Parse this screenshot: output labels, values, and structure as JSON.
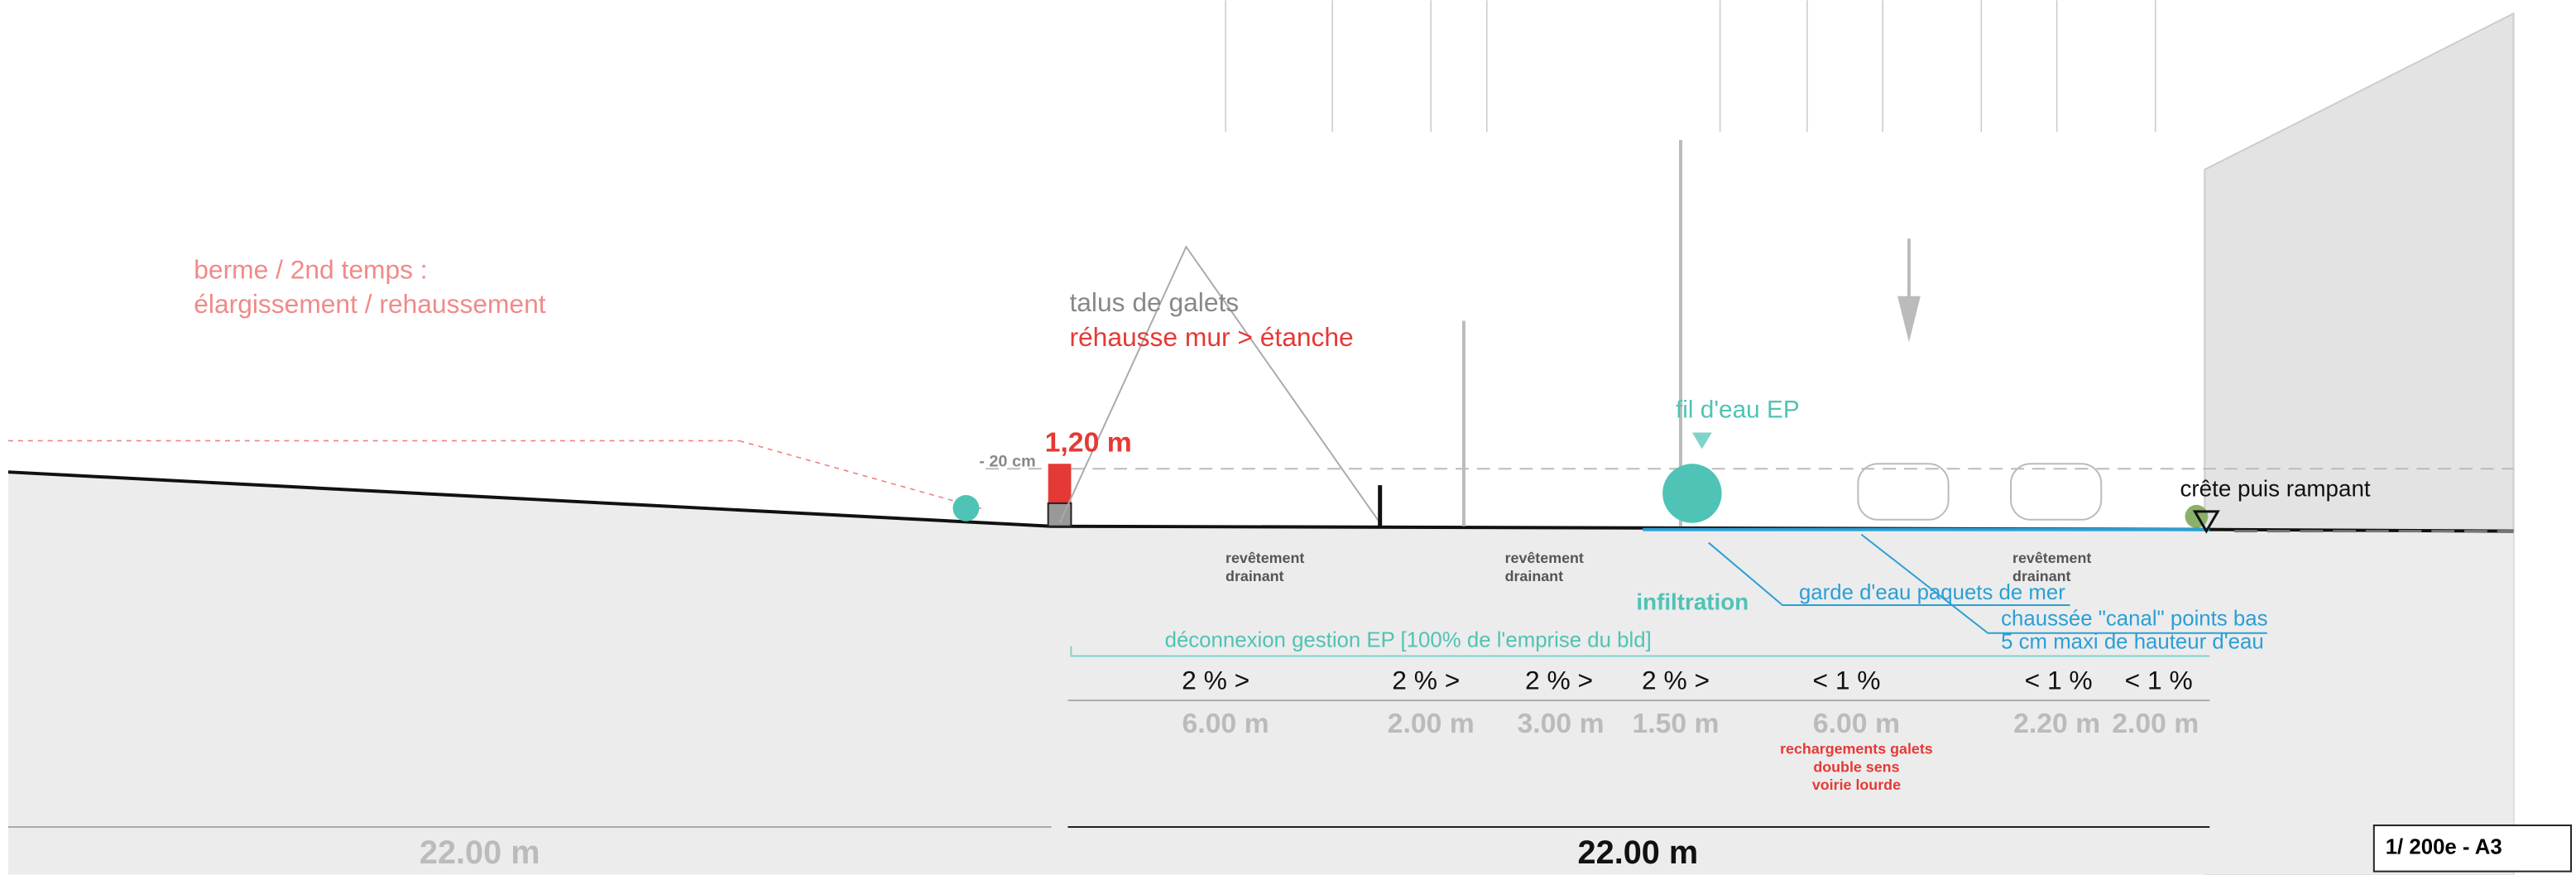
{
  "annotations": {
    "berme": [
      "berme / 2nd temps :",
      "élargissement / rehaussement"
    ],
    "talus": "talus de galets",
    "rehausse": "réhausse mur > étanche",
    "height": "1,20 m",
    "depth": "- 20 cm",
    "fil": "fil d'eau EP",
    "crete": "crête puis rampant",
    "infiltration": "infiltration",
    "garde": "garde d'eau paquets de mer",
    "chaussee": [
      "chaussée \"canal\" points bas",
      "5 cm maxi de hauteur d'eau"
    ],
    "deconnexion": "déconnexion gestion EP [100% de l'emprise du bld]",
    "recharge": [
      "rechargements galets",
      "double sens",
      "voirie lourde"
    ]
  },
  "surfaces": [
    [
      "revêtement",
      "drainant"
    ],
    [
      "revêtement",
      "drainant"
    ],
    [
      "revêtement",
      "drainant"
    ]
  ],
  "slopes": [
    "2 % >",
    "2 % >",
    "2 % >",
    "2 % >",
    "< 1 %",
    "< 1 %",
    "< 1 %"
  ],
  "widths": [
    "6.00 m",
    "2.00 m",
    "3.00 m",
    "1.50 m",
    "6.00 m",
    "2.20 m",
    "2.00 m"
  ],
  "totals": [
    "22.00 m",
    "22.00 m"
  ],
  "scale": "1/ 200e - A3"
}
